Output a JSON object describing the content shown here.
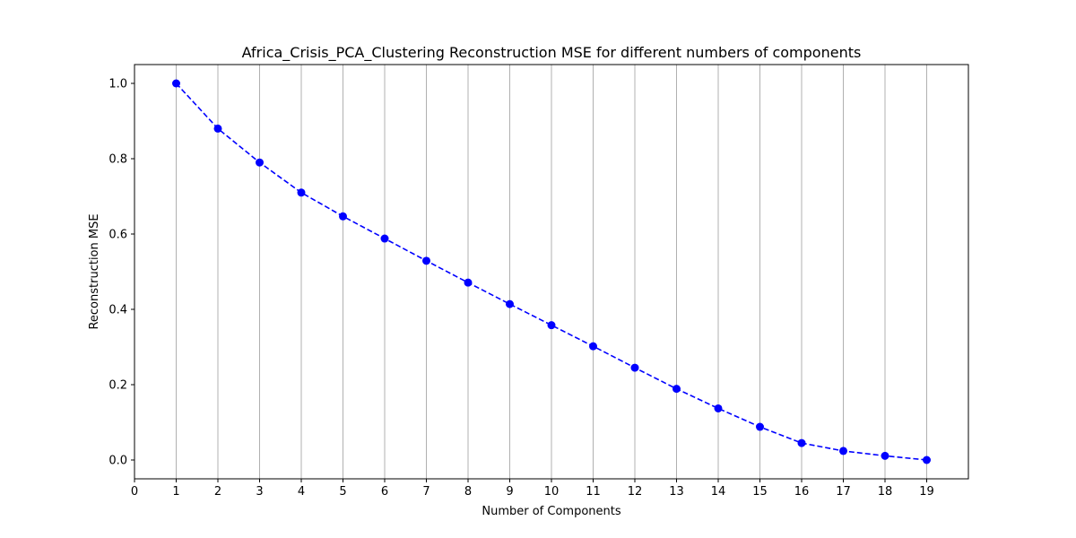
{
  "chart_data": {
    "type": "line",
    "title": "Africa_Crisis_PCA_Clustering Reconstruction MSE for different numbers of components",
    "xlabel": "Number of Components",
    "ylabel": "Reconstruction MSE",
    "xlim": [
      0,
      20
    ],
    "ylim": [
      -0.05,
      1.05
    ],
    "xticks": [
      0,
      1,
      2,
      3,
      4,
      5,
      6,
      7,
      8,
      9,
      10,
      11,
      12,
      13,
      14,
      15,
      16,
      17,
      18,
      19
    ],
    "yticks": [
      0.0,
      0.2,
      0.4,
      0.6,
      0.8,
      1.0
    ],
    "grid": "vertical",
    "series": [
      {
        "x": [
          1,
          2,
          3,
          4,
          5,
          6,
          7,
          8,
          9,
          10,
          11,
          12,
          13,
          14,
          15,
          16,
          17,
          18,
          19
        ],
        "values": [
          1.0,
          0.88,
          0.79,
          0.71,
          0.647,
          0.588,
          0.529,
          0.471,
          0.414,
          0.358,
          0.302,
          0.245,
          0.189,
          0.137,
          0.088,
          0.045,
          0.024,
          0.011,
          0.0
        ],
        "color": "#0000ff",
        "line_style": "dashed",
        "marker": "circle"
      }
    ]
  }
}
